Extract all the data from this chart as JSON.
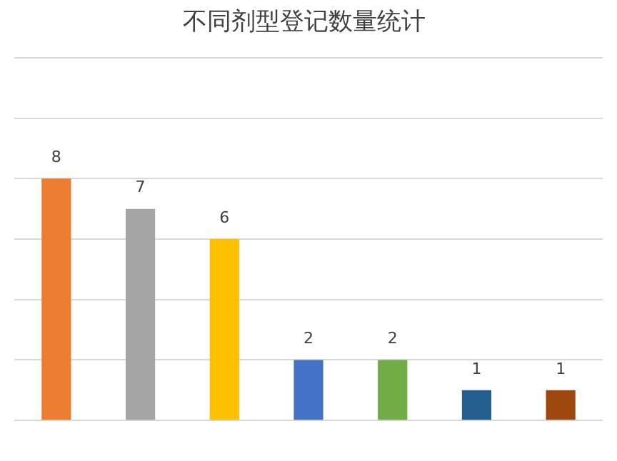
{
  "chart_data": {
    "type": "bar",
    "title": "不同剂型登记数量统计",
    "categories": [
      null,
      null,
      null,
      null,
      null,
      null,
      null
    ],
    "values": [
      8,
      7,
      6,
      2,
      2,
      1,
      1
    ],
    "colors": [
      "#ed7d31",
      "#a5a5a5",
      "#ffc000",
      "#4472c4",
      "#70ad47",
      "#255e91",
      "#9e480e"
    ],
    "ylim": [
      0,
      12
    ],
    "yticks": [
      {
        "value": 0,
        "label": null
      },
      {
        "value": 2,
        "label": null
      },
      {
        "value": 4,
        "label": null
      },
      {
        "value": 6,
        "label": null
      },
      {
        "value": 8,
        "label": null
      },
      {
        "value": 10,
        "label": null
      },
      {
        "value": 12,
        "label": null
      }
    ],
    "grid": "y",
    "data_labels": true,
    "legend": false
  }
}
